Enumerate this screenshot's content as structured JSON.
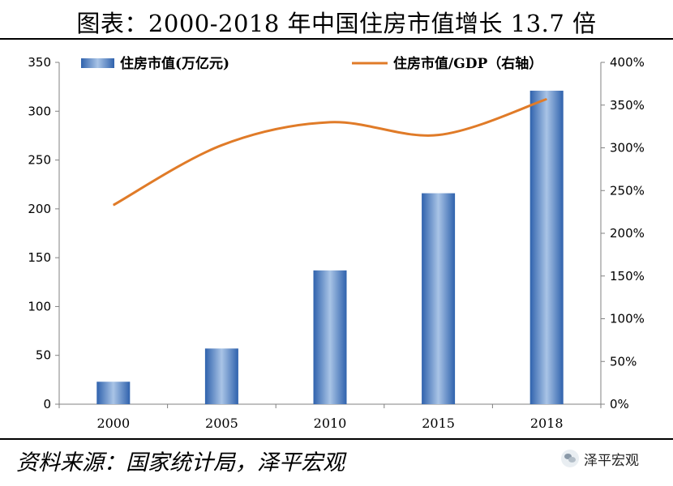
{
  "title": "图表：2000-2018 年中国住房市值增长 13.7 倍",
  "source": "资料来源：国家统计局，泽平宏观",
  "watermark": "泽平宏观",
  "chart_data": {
    "type": "bar",
    "categories": [
      "2000",
      "2005",
      "2010",
      "2015",
      "2018"
    ],
    "series": [
      {
        "name": "住房市值(万亿元)",
        "type": "bar",
        "axis": "left",
        "values": [
          23,
          57,
          137,
          216,
          321
        ],
        "color": "#4a7fc3"
      },
      {
        "name": "住房市值/GDP（右轴）",
        "type": "line",
        "axis": "right",
        "values": [
          233,
          303,
          330,
          315,
          357
        ],
        "color": "#e07b28"
      }
    ],
    "y_left": {
      "ylim": [
        0,
        350
      ],
      "ticks": [
        "0",
        "50",
        "100",
        "150",
        "200",
        "250",
        "300",
        "350"
      ]
    },
    "y_right": {
      "ylim": [
        0,
        400
      ],
      "ticks": [
        "0%",
        "50%",
        "100%",
        "150%",
        "200%",
        "250%",
        "300%",
        "350%",
        "400%"
      ]
    },
    "legend_position": "top",
    "grid": false
  }
}
